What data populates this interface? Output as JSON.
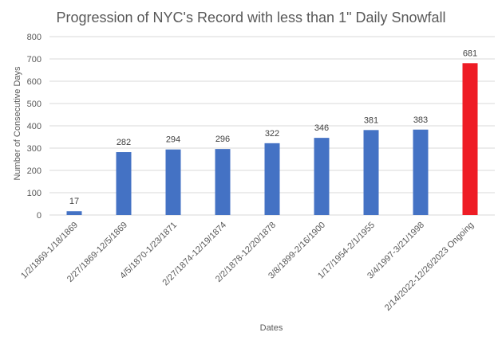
{
  "chart_data": {
    "type": "bar",
    "title": "Progression of NYC's Record with less than 1\" Daily Snowfall",
    "xlabel": "Dates",
    "ylabel": "Number of Consecutive Days",
    "ylim": [
      0,
      800
    ],
    "yticks": [
      0,
      100,
      200,
      300,
      400,
      500,
      600,
      700,
      800
    ],
    "grid": true,
    "legend": "none",
    "categories": [
      "1/2/1869-1/18/1869",
      "2/27/1869-12/5/1869",
      "4/5/1870-1/23/1871",
      "2/27/1874-12/19/1874",
      "2/2/1878-12/20/1878",
      "3/8/1899-2/16/1900",
      "1/17/1954-2/1/1955",
      "3/4/1997-3/21/1998",
      "2/14/2022-12/26/2023 Ongoing"
    ],
    "values": [
      17,
      282,
      294,
      296,
      322,
      346,
      381,
      383,
      681
    ],
    "colors": [
      "#4472c4",
      "#4472c4",
      "#4472c4",
      "#4472c4",
      "#4472c4",
      "#4472c4",
      "#4472c4",
      "#4472c4",
      "#ee1c25"
    ]
  }
}
